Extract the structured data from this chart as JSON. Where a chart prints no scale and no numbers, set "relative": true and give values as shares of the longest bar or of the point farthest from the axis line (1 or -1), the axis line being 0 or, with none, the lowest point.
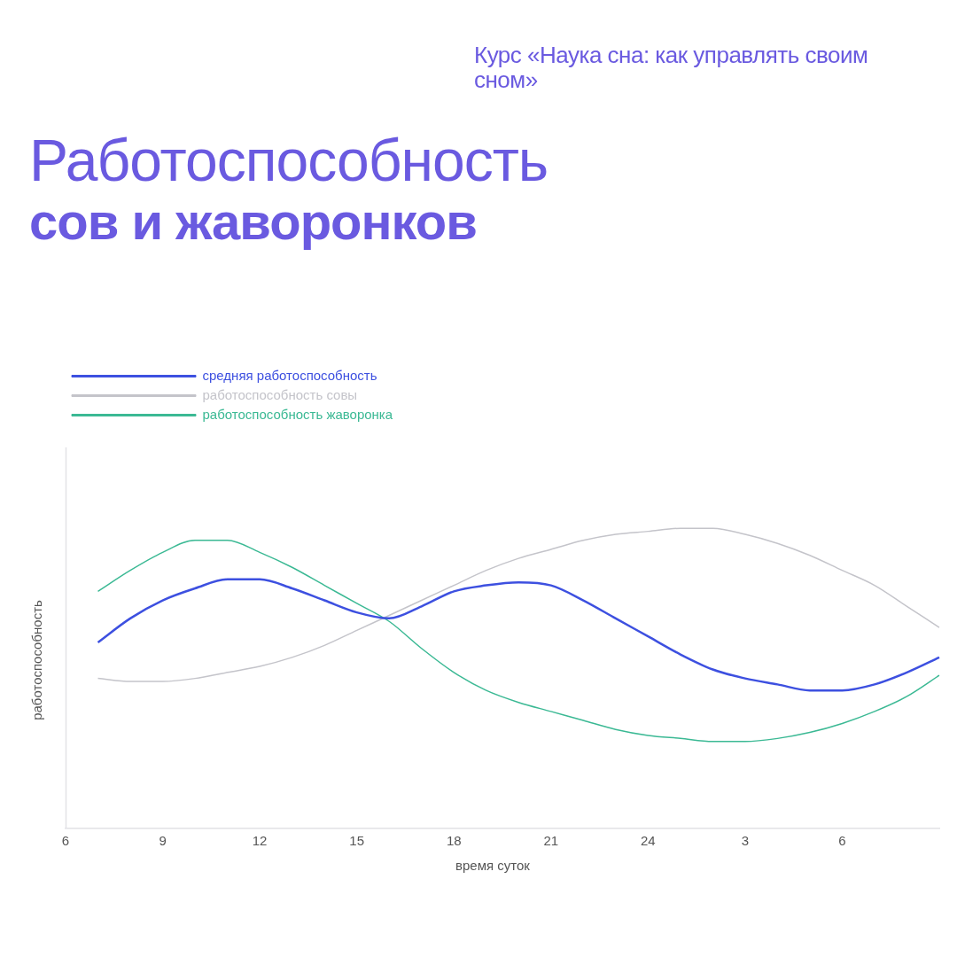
{
  "chart_data": {
    "type": "line",
    "title": "Работоспособность",
    "subtitle": "сов и жаворонков",
    "annotations": [
      "Курс «Наука сна: как управлять своим сном»"
    ],
    "xlabel": "время суток",
    "ylabel": "работоспособность",
    "relative": true,
    "legend": "top left",
    "grid": false,
    "marker": "none",
    "line_style": "solid",
    "categories": [
      "6",
      null,
      null,
      "9",
      null,
      null,
      "12",
      null,
      null,
      "15",
      null,
      null,
      "18",
      null,
      null,
      "21",
      null,
      null,
      "24",
      null,
      null,
      "3",
      null,
      null,
      "6",
      null,
      null,
      null
    ],
    "series": [
      {
        "name": "средняя работоспособность",
        "color": "#3d50e0",
        "values": [
          null,
          0.62,
          0.7,
          0.76,
          0.8,
          0.83,
          0.83,
          0.8,
          0.76,
          0.72,
          0.7,
          0.74,
          0.79,
          0.81,
          0.82,
          0.81,
          0.76,
          0.7,
          0.64,
          0.58,
          0.53,
          0.5,
          0.48,
          0.46,
          0.46,
          0.48,
          0.52,
          0.57
        ]
      },
      {
        "name": "работоспособность совы",
        "color": "#c4c4ca",
        "values": [
          null,
          0.5,
          0.49,
          0.49,
          0.5,
          0.52,
          0.54,
          0.57,
          0.61,
          0.66,
          0.71,
          0.76,
          0.81,
          0.86,
          0.9,
          0.93,
          0.96,
          0.98,
          0.99,
          1,
          1,
          0.98,
          0.95,
          0.91,
          0.86,
          0.81,
          0.74,
          0.67
        ]
      },
      {
        "name": "работоспособность жаворонка",
        "color": "#3bb994",
        "values": [
          null,
          0.79,
          0.86,
          0.92,
          0.96,
          0.96,
          0.92,
          0.87,
          0.81,
          0.75,
          0.69,
          0.6,
          0.52,
          0.46,
          0.42,
          0.39,
          0.36,
          0.33,
          0.31,
          0.3,
          0.29,
          0.29,
          0.3,
          0.32,
          0.35,
          0.39,
          0.44,
          0.51
        ]
      }
    ]
  }
}
